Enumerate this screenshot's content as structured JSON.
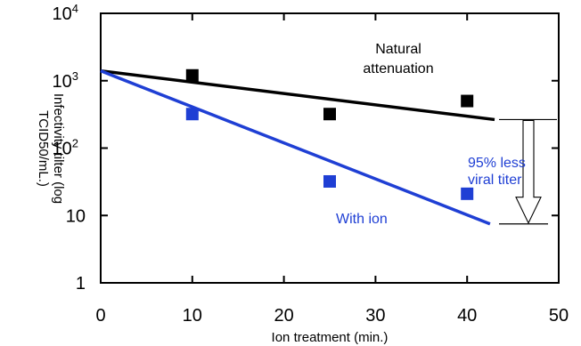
{
  "chart_data": {
    "type": "scatter",
    "xlabel": "Ion treatment (min.)",
    "ylabel": [
      "Infectivity tilter (log",
      "TCID50/mL.)"
    ],
    "xlim": [
      0,
      50
    ],
    "ylim": [
      1,
      10000
    ],
    "yscale": "log",
    "grid": false,
    "x_ticks": [
      "0",
      "10",
      "20",
      "30",
      "40",
      "50"
    ],
    "y_ticks": [
      {
        "value": 1,
        "base": "1",
        "exp": ""
      },
      {
        "value": 10,
        "base": "10",
        "exp": ""
      },
      {
        "value": 100,
        "base": "10",
        "exp": "2"
      },
      {
        "value": 1000,
        "base": "10",
        "exp": "3"
      },
      {
        "value": 10000,
        "base": "10",
        "exp": "4"
      }
    ],
    "series": [
      {
        "color": "#000000",
        "x": [
          10,
          25,
          40
        ],
        "y": [
          1200,
          320,
          500
        ],
        "trend": {
          "x": [
            0,
            43
          ],
          "y": [
            1400,
            265
          ]
        }
      },
      {
        "color": "#1f3fd4",
        "x": [
          10,
          25,
          40
        ],
        "y": [
          320,
          32,
          21
        ],
        "trend": {
          "x": [
            0,
            42.5
          ],
          "y": [
            1400,
            7.5
          ]
        }
      }
    ],
    "annotations": [
      {
        "text": "Natural",
        "color": "#000000"
      },
      {
        "text": "attenuation",
        "color": "#000000"
      },
      {
        "text": "With ion",
        "color": "#1f3fd4"
      },
      {
        "text": "95% less",
        "color": "#1f3fd4"
      },
      {
        "text": "viral titer",
        "color": "#1f3fd4"
      }
    ]
  }
}
